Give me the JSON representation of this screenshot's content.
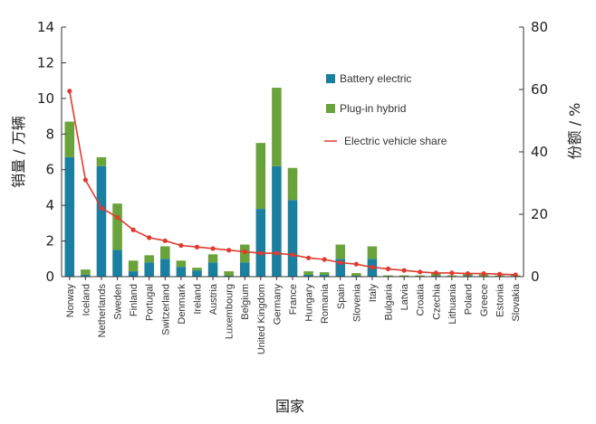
{
  "chart_data": {
    "type": "bar",
    "stacked": true,
    "categories": [
      "Norway",
      "Iceland",
      "Netherlands",
      "Sweden",
      "Finland",
      "Portugal",
      "Switzerland",
      "Denmark",
      "Ireland",
      "Austria",
      "Luxembourg",
      "Belgium",
      "United Kingdom",
      "Germany",
      "France",
      "Hungary",
      "Romania",
      "Spain",
      "Slovenia",
      "Italy",
      "Bulgaria",
      "Latvia",
      "Croatia",
      "Czechia",
      "Lithuania",
      "Poland",
      "Greece",
      "Estonia",
      "Slovakia"
    ],
    "series": [
      {
        "name": "Battery electric",
        "axis": "left",
        "color": "#1b7fa0",
        "values": [
          6.7,
          0.1,
          6.2,
          1.5,
          0.3,
          0.8,
          1.0,
          0.55,
          0.35,
          0.8,
          0.05,
          0.8,
          3.8,
          6.2,
          4.3,
          0.1,
          0.1,
          1.0,
          0.05,
          1.0,
          0.02,
          0.02,
          0.02,
          0.05,
          0.02,
          0.05,
          0.02,
          0.02,
          0.02
        ]
      },
      {
        "name": "Plug-in hybrid",
        "axis": "left",
        "color": "#6aa33b",
        "values": [
          2.0,
          0.3,
          0.5,
          2.6,
          0.6,
          0.4,
          0.7,
          0.35,
          0.15,
          0.45,
          0.25,
          1.0,
          3.7,
          4.4,
          1.8,
          0.2,
          0.15,
          0.8,
          0.15,
          0.7,
          0.05,
          0.05,
          0.05,
          0.15,
          0.05,
          0.15,
          0.1,
          0.05,
          0.05
        ]
      },
      {
        "name": "Electric vehicle share",
        "type": "line",
        "axis": "right",
        "color": "#e03a2f",
        "unit": "%",
        "values": [
          59.5,
          31,
          22,
          19,
          15,
          12.5,
          11.5,
          10,
          9.5,
          9,
          8.5,
          8,
          7.5,
          7.5,
          7,
          6,
          5.5,
          4.5,
          4,
          3,
          2.5,
          2,
          1.5,
          1.2,
          1.2,
          1,
          1,
          0.8,
          0.6
        ]
      }
    ],
    "xlabel": "国家",
    "ylabel": "销量 / 万辆",
    "y2label": "份额 / %",
    "ylim": [
      0,
      14
    ],
    "y2lim": [
      0,
      80
    ],
    "yticks": [
      "0",
      "2",
      "4",
      "6",
      "8",
      "10",
      "12",
      "14"
    ],
    "y2ticks": [
      "0",
      "20",
      "40",
      "60",
      "80"
    ],
    "legend_position": "top-right",
    "grid": false
  }
}
